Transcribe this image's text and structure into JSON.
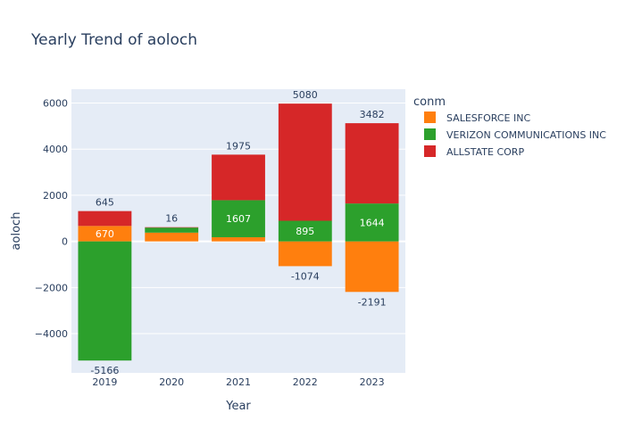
{
  "chart_data": {
    "type": "bar",
    "barmode": "relative",
    "title": "Yearly Trend of aoloch",
    "xlabel": "Year",
    "ylabel": "aoloch",
    "categories": [
      "2019",
      "2020",
      "2021",
      "2022",
      "2023"
    ],
    "ylim": [
      -5700,
      6600
    ],
    "yticks": [
      -4000,
      -2000,
      0,
      2000,
      4000,
      6000
    ],
    "ytick_labels": [
      "−4000",
      "−2000",
      "0",
      "2000",
      "4000",
      "6000"
    ],
    "legend_title": "conm",
    "legend_position": "right",
    "grid": true,
    "series": [
      {
        "name": "SALESFORCE INC",
        "color": "#ff7f0e",
        "values": [
          670,
          380,
          180,
          -1074,
          -2191
        ],
        "labels": [
          "670",
          "",
          "",
          "-1074",
          "-2191"
        ]
      },
      {
        "name": "VERIZON COMMUNICATIONS INC",
        "color": "#2ca02c",
        "values": [
          -5166,
          220,
          1607,
          895,
          1644
        ],
        "labels": [
          "-5166",
          "",
          "1607",
          "895",
          "1644"
        ]
      },
      {
        "name": "ALLSTATE CORP",
        "color": "#d62728",
        "values": [
          645,
          16,
          1975,
          5080,
          3482
        ],
        "labels": [
          "645",
          "16",
          "1975",
          "5080",
          "3482"
        ]
      }
    ]
  }
}
